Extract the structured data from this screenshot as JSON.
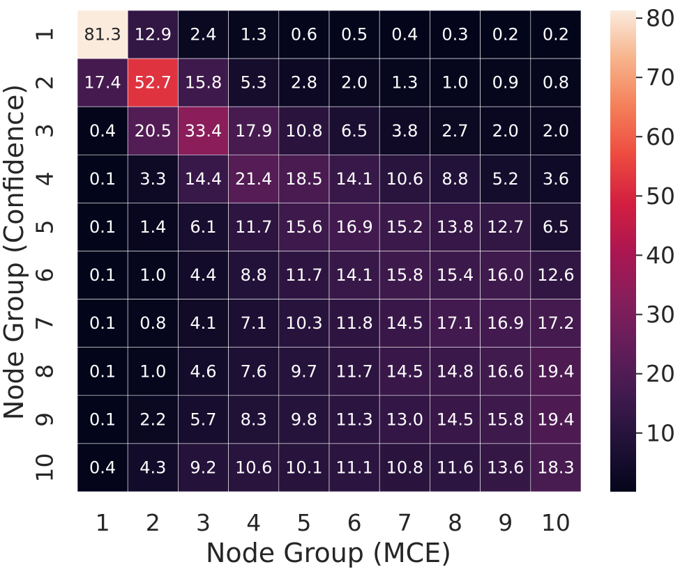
{
  "chart_data": {
    "type": "heatmap",
    "title": "",
    "xlabel": "Node Group (MCE)",
    "ylabel": "Node Group (Confidence)",
    "x_categories": [
      "1",
      "2",
      "3",
      "4",
      "5",
      "6",
      "7",
      "8",
      "9",
      "10"
    ],
    "y_categories": [
      "1",
      "2",
      "3",
      "4",
      "5",
      "6",
      "7",
      "8",
      "9",
      "10"
    ],
    "values": [
      [
        81.3,
        12.9,
        2.4,
        1.3,
        0.6,
        0.5,
        0.4,
        0.3,
        0.2,
        0.2
      ],
      [
        17.4,
        52.7,
        15.8,
        5.3,
        2.8,
        2.0,
        1.3,
        1.0,
        0.9,
        0.8
      ],
      [
        0.4,
        20.5,
        33.4,
        17.9,
        10.8,
        6.5,
        3.8,
        2.7,
        2.0,
        2.0
      ],
      [
        0.1,
        3.3,
        14.4,
        21.4,
        18.5,
        14.1,
        10.6,
        8.8,
        5.2,
        3.6
      ],
      [
        0.1,
        1.4,
        6.1,
        11.7,
        15.6,
        16.9,
        15.2,
        13.8,
        12.7,
        6.5
      ],
      [
        0.1,
        1.0,
        4.4,
        8.8,
        11.7,
        14.1,
        15.8,
        15.4,
        16.0,
        12.6
      ],
      [
        0.1,
        0.8,
        4.1,
        7.1,
        10.3,
        11.8,
        14.5,
        17.1,
        16.9,
        17.2
      ],
      [
        0.1,
        1.0,
        4.6,
        7.6,
        9.7,
        11.7,
        14.5,
        14.8,
        16.6,
        19.4
      ],
      [
        0.1,
        2.2,
        5.7,
        8.3,
        9.8,
        11.3,
        13.0,
        14.5,
        15.8,
        19.4
      ],
      [
        0.4,
        4.3,
        9.2,
        10.6,
        10.1,
        11.1,
        10.8,
        11.6,
        13.6,
        18.3
      ]
    ],
    "value_format": "0.1f",
    "colormap": "rocket",
    "color_range": [
      0.1,
      81.3
    ],
    "colorbar_ticks": [
      10,
      20,
      30,
      40,
      50,
      60,
      70,
      80
    ],
    "colorbar_tick_labels": [
      "10",
      "20",
      "30",
      "40",
      "50",
      "60",
      "70",
      "80"
    ],
    "grid": true,
    "cell_border_color": "#ffffff"
  }
}
